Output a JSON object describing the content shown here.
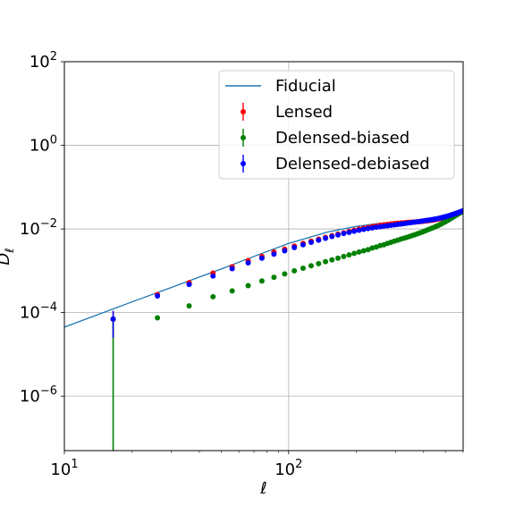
{
  "chart_data": {
    "type": "scatter",
    "title": "",
    "xlabel": "ℓ",
    "ylabel": "D_ℓ",
    "xscale": "log",
    "yscale": "log",
    "xlim": [
      10,
      600
    ],
    "ylim": [
      5e-08,
      100
    ],
    "grid": true,
    "legend_position": "top-right",
    "x_ticks": [
      {
        "value": 10,
        "base": "10",
        "exp": "1"
      },
      {
        "value": 100,
        "base": "10",
        "exp": "2"
      }
    ],
    "y_ticks": [
      {
        "value": 1e-06,
        "base": "10",
        "exp": "−6"
      },
      {
        "value": 0.0001,
        "base": "10",
        "exp": "−4"
      },
      {
        "value": 0.01,
        "base": "10",
        "exp": "−2"
      },
      {
        "value": 1,
        "base": "10",
        "exp": "0"
      },
      {
        "value": 100,
        "base": "10",
        "exp": "2"
      }
    ],
    "series": [
      {
        "name": "Fiducial",
        "kind": "line",
        "color": "#1f77b4",
        "x": [
          10,
          20,
          30,
          50,
          70,
          100,
          150,
          200,
          250,
          300,
          350,
          400,
          450,
          500,
          550,
          600
        ],
        "y": [
          4.5e-05,
          0.00018,
          0.0004,
          0.0011,
          0.0022,
          0.0045,
          0.0085,
          0.0115,
          0.0135,
          0.0145,
          0.015,
          0.0155,
          0.0175,
          0.0205,
          0.024,
          0.028
        ]
      },
      {
        "name": "Lensed",
        "kind": "points",
        "color": "#ff0000",
        "x": [
          16.5,
          26,
          36,
          46,
          56,
          66,
          76,
          86,
          96,
          106,
          116,
          126,
          136,
          146,
          156,
          166,
          176,
          186,
          196,
          206,
          216,
          226,
          236,
          246,
          256,
          266,
          276,
          286,
          296,
          306,
          316,
          326,
          336,
          346,
          356,
          366,
          376,
          386,
          396,
          406,
          416,
          426,
          436,
          446,
          456,
          466,
          476,
          486,
          496,
          506,
          516,
          526,
          536,
          546,
          556,
          566,
          576,
          586,
          596
        ],
        "y": [
          7e-05,
          0.00027,
          0.00052,
          0.00088,
          0.00125,
          0.00175,
          0.0022,
          0.0028,
          0.0033,
          0.0039,
          0.0045,
          0.0051,
          0.0057,
          0.0063,
          0.0069,
          0.0075,
          0.0081,
          0.0087,
          0.0093,
          0.0099,
          0.0104,
          0.0109,
          0.0114,
          0.0118,
          0.0122,
          0.0126,
          0.0129,
          0.0132,
          0.0135,
          0.0137,
          0.0139,
          0.0141,
          0.0143,
          0.0144,
          0.0146,
          0.0147,
          0.0148,
          0.015,
          0.0152,
          0.0154,
          0.0156,
          0.0159,
          0.0162,
          0.0165,
          0.0169,
          0.0173,
          0.0178,
          0.0183,
          0.0189,
          0.0195,
          0.0201,
          0.0208,
          0.0215,
          0.0222,
          0.023,
          0.0238,
          0.0246,
          0.0255,
          0.0265
        ],
        "yerr_low": [
          4.5e-05
        ],
        "yerr_high": [
          4e-05
        ]
      },
      {
        "name": "Delensed-biased",
        "kind": "points",
        "color": "#008000",
        "x": [
          26,
          36,
          46,
          56,
          66,
          76,
          86,
          96,
          106,
          116,
          126,
          136,
          146,
          156,
          166,
          176,
          186,
          196,
          206,
          216,
          226,
          236,
          246,
          256,
          266,
          276,
          286,
          296,
          306,
          316,
          326,
          336,
          346,
          356,
          366,
          376,
          386,
          396,
          406,
          416,
          426,
          436,
          446,
          456,
          466,
          476,
          486,
          496,
          506,
          516,
          526,
          536,
          546,
          556,
          566,
          576,
          586,
          596
        ],
        "y": [
          7.5e-05,
          0.000145,
          0.00024,
          0.00033,
          0.00044,
          0.00057,
          0.0007,
          0.00084,
          0.001,
          0.00115,
          0.00132,
          0.00148,
          0.00165,
          0.00182,
          0.002,
          0.0022,
          0.0024,
          0.0026,
          0.0028,
          0.003,
          0.0032,
          0.0035,
          0.0037,
          0.004,
          0.0042,
          0.0045,
          0.0048,
          0.0051,
          0.0054,
          0.0057,
          0.006,
          0.0063,
          0.0066,
          0.007,
          0.0073,
          0.0077,
          0.0081,
          0.0085,
          0.009,
          0.0095,
          0.01,
          0.0105,
          0.011,
          0.0116,
          0.0122,
          0.0129,
          0.0137,
          0.0145,
          0.0154,
          0.0164,
          0.0175,
          0.0186,
          0.0198,
          0.021,
          0.0222,
          0.0235,
          0.0248,
          0.026
        ],
        "first_point": {
          "x": 16.5,
          "y": 7e-05,
          "yerr_low_to": 5e-08
        }
      },
      {
        "name": "Delensed-debiased",
        "kind": "points",
        "color": "#0000ff",
        "x": [
          16.5,
          26,
          36,
          46,
          56,
          66,
          76,
          86,
          96,
          106,
          116,
          126,
          136,
          146,
          156,
          166,
          176,
          186,
          196,
          206,
          216,
          226,
          236,
          246,
          256,
          266,
          276,
          286,
          296,
          306,
          316,
          326,
          336,
          346,
          356,
          366,
          376,
          386,
          396,
          406,
          416,
          426,
          436,
          446,
          456,
          466,
          476,
          486,
          496,
          506,
          516,
          526,
          536,
          546,
          556,
          566,
          576,
          586,
          596
        ],
        "y": [
          7e-05,
          0.00025,
          0.00047,
          0.00075,
          0.00112,
          0.00155,
          0.002,
          0.0025,
          0.003,
          0.0036,
          0.0042,
          0.0048,
          0.0054,
          0.006,
          0.0066,
          0.0072,
          0.0078,
          0.0083,
          0.0088,
          0.0093,
          0.0098,
          0.0102,
          0.0106,
          0.011,
          0.0113,
          0.0116,
          0.0119,
          0.0122,
          0.0125,
          0.0128,
          0.0131,
          0.0134,
          0.0137,
          0.014,
          0.0143,
          0.0146,
          0.0149,
          0.0152,
          0.0155,
          0.0158,
          0.0161,
          0.0164,
          0.0167,
          0.0171,
          0.0175,
          0.0179,
          0.0184,
          0.0189,
          0.0194,
          0.02,
          0.0206,
          0.0213,
          0.022,
          0.0227,
          0.0235,
          0.0243,
          0.0252,
          0.0261,
          0.027
        ],
        "yerr_low": [
          4.5e-05
        ],
        "yerr_high": [
          4e-05
        ]
      }
    ]
  }
}
